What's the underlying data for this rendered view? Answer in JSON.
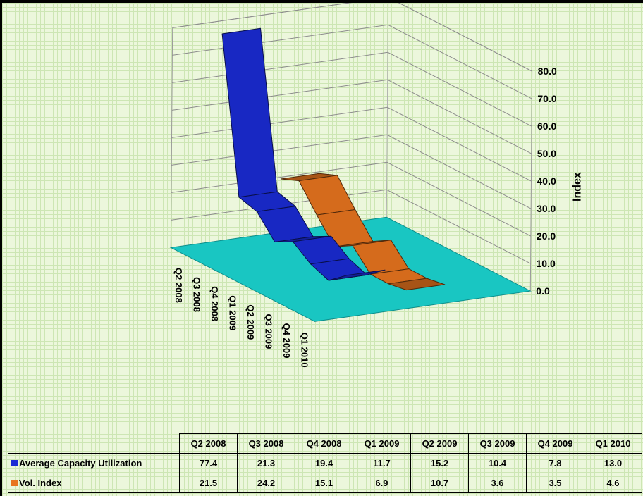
{
  "chart_data": {
    "type": "line",
    "style": "3d-ribbon",
    "categories": [
      "Q2 2008",
      "Q3 2008",
      "Q4 2008",
      "Q1 2009",
      "Q2 2009",
      "Q3 2009",
      "Q4 2009",
      "Q1 2010"
    ],
    "series": [
      {
        "name": "Average Capacity Utilization",
        "values": [
          77.4,
          21.3,
          19.4,
          11.7,
          15.2,
          10.4,
          7.8,
          13.0
        ],
        "color": "#1a2bd4"
      },
      {
        "name": "Vol. Index",
        "values": [
          21.5,
          24.2,
          15.1,
          6.9,
          10.7,
          3.6,
          3.5,
          4.6
        ],
        "color": "#e8741e"
      }
    ],
    "ylabel": "Index",
    "ylim": [
      0,
      80
    ],
    "yticks": [
      "0.0",
      "10.0",
      "20.0",
      "30.0",
      "40.0",
      "50.0",
      "60.0",
      "70.0",
      "80.0"
    ],
    "grid": true,
    "floor_color": "#19c6c2",
    "legend": "data-table-below",
    "data_table": {
      "rows": [
        {
          "label": "Average Capacity Utilization",
          "cells": [
            "77.4",
            "21.3",
            "19.4",
            "11.7",
            "15.2",
            "10.4",
            "7.8",
            "13.0"
          ]
        },
        {
          "label": "Vol. Index",
          "cells": [
            "21.5",
            "24.2",
            "15.1",
            "6.9",
            "10.7",
            "3.6",
            "3.5",
            "4.6"
          ]
        }
      ]
    }
  }
}
